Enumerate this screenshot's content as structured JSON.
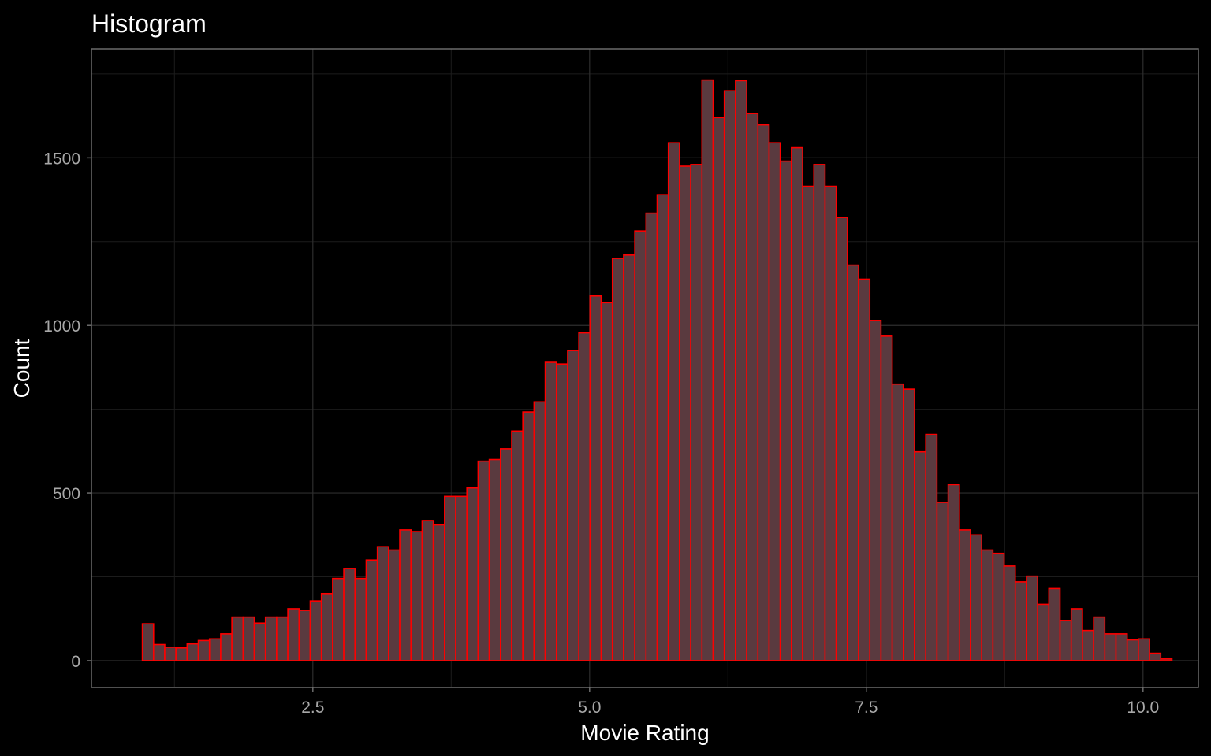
{
  "chart_data": {
    "type": "bar",
    "title": "Histogram",
    "xlabel": "Movie Rating",
    "ylabel": "Count",
    "xlim": [
      0.5,
      10.5
    ],
    "ylim": [
      -80,
      1825
    ],
    "x_ticks": [
      2.5,
      5.0,
      7.5,
      10.0
    ],
    "x_tick_labels": [
      "2.5",
      "5.0",
      "7.5",
      "10.0"
    ],
    "y_ticks": [
      0,
      500,
      1000,
      1500
    ],
    "y_tick_labels": [
      "0",
      "500",
      "1000",
      "1500"
    ],
    "grid": true,
    "legend": "none",
    "bin_start": 0.96,
    "bin_width": 0.1011,
    "counts": [
      110,
      48,
      40,
      38,
      50,
      60,
      65,
      80,
      130,
      130,
      112,
      130,
      130,
      155,
      150,
      178,
      200,
      245,
      275,
      245,
      300,
      340,
      330,
      390,
      385,
      418,
      405,
      490,
      490,
      515,
      595,
      600,
      632,
      685,
      742,
      772,
      890,
      885,
      925,
      978,
      1088,
      1068,
      1200,
      1210,
      1282,
      1335,
      1390,
      1545,
      1475,
      1480,
      1732,
      1620,
      1700,
      1730,
      1632,
      1598,
      1545,
      1490,
      1530,
      1415,
      1480,
      1415,
      1322,
      1180,
      1138,
      1015,
      968,
      825,
      810,
      623,
      675,
      472,
      525,
      390,
      375,
      330,
      320,
      282,
      235,
      252,
      168,
      215,
      120,
      155,
      90,
      130,
      80,
      80,
      62,
      65,
      22,
      5
    ],
    "colors": {
      "background": "#000000",
      "bar_fill": "#5a3a3f",
      "bar_outline": "#ff0000"
    }
  }
}
